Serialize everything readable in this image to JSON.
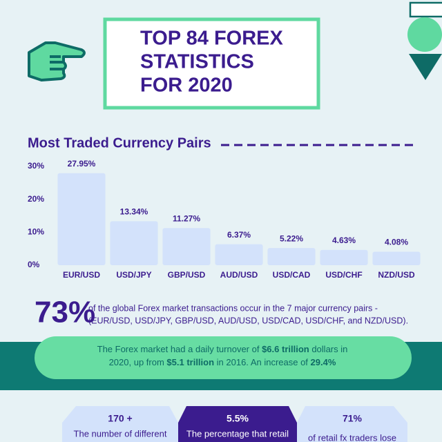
{
  "header": {
    "title_lines": [
      "TOP 84 FOREX",
      "STATISTICS",
      "FOR 2020"
    ]
  },
  "chart_data": {
    "type": "bar",
    "title": "Most Traded Currency Pairs",
    "categories": [
      "EUR/USD",
      "USD/JPY",
      "GBP/USD",
      "AUD/USD",
      "USD/CAD",
      "USD/CHF",
      "NZD/USD"
    ],
    "values": [
      27.95,
      13.34,
      11.27,
      6.37,
      5.22,
      4.63,
      4.08
    ],
    "value_labels": [
      "27.95%",
      "13.34%",
      "11.27%",
      "6.37%",
      "5.22%",
      "4.63%",
      "4.08%"
    ],
    "color": "#d3e2fb",
    "ylim": [
      0,
      30
    ],
    "yticks": [
      {
        "value": 0,
        "label": "0%"
      },
      {
        "value": 10,
        "label": "10%"
      },
      {
        "value": 20,
        "label": "20%"
      },
      {
        "value": 30,
        "label": "30%"
      }
    ],
    "grid": false
  },
  "highlight": {
    "figure": "73%",
    "lines": [
      "of the global Forex market transactions occur in the 7 major currency pairs -",
      "(EUR/USD, USD/JPY, GBP/USD, AUD/USD, USD/CAD, USD/CHF, and NZD/USD)."
    ]
  },
  "banner": {
    "lines": [
      [
        {
          "text": "The Forex market had a daily turnover of ",
          "bold": false
        },
        {
          "text": "$6.6 trillion",
          "bold": true
        },
        {
          "text": " dollars in",
          "bold": false
        }
      ],
      [
        {
          "text": "2020, up from ",
          "bold": false
        },
        {
          "text": "$5.1 trillion",
          "bold": true
        },
        {
          "text": " in 2016. An increase of ",
          "bold": false
        },
        {
          "text": "29.4%",
          "bold": true
        }
      ]
    ]
  },
  "cards": [
    {
      "figure": "170 +",
      "text": "The number of different"
    },
    {
      "figure": "5.5%",
      "text": "The percentage that retail"
    },
    {
      "figure": "71%",
      "text": "of retail fx traders lose"
    }
  ]
}
